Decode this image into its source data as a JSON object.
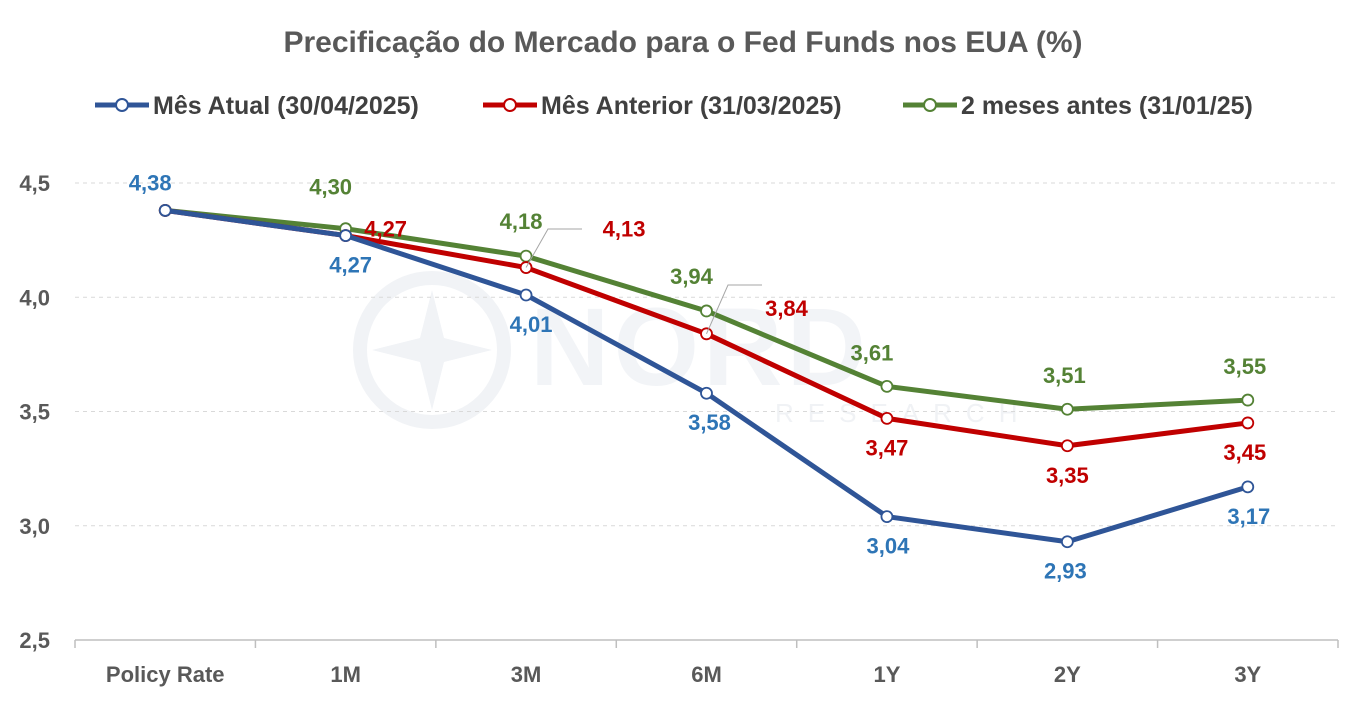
{
  "chart_data": {
    "type": "line",
    "title": "Precificação do Mercado para o Fed Funds nos EUA (%)",
    "categories": [
      "Policy Rate",
      "1M",
      "3M",
      "6M",
      "1Y",
      "2Y",
      "3Y"
    ],
    "y_ticks": [
      "4,5",
      "4,0",
      "3,5",
      "3,0",
      "2,5"
    ],
    "ylim": [
      2.5,
      4.5
    ],
    "grid": true,
    "legend_position": "top",
    "series": [
      {
        "name": "Mês Atual (30/04/2025)",
        "color": "#2f5597",
        "label_color": "#2e75b6",
        "values": [
          4.38,
          4.27,
          4.01,
          3.58,
          3.04,
          2.93,
          3.17
        ],
        "labels": [
          "4,38",
          "4,27",
          "4,01",
          "3,58",
          "3,04",
          "2,93",
          "3,17"
        ]
      },
      {
        "name": "Mês Anterior (31/03/2025)",
        "color": "#c00000",
        "label_color": "#c00000",
        "values": [
          4.38,
          4.27,
          4.13,
          3.84,
          3.47,
          3.35,
          3.45
        ],
        "labels": [
          "",
          "4,27",
          "4,13",
          "3,84",
          "3,47",
          "3,35",
          "3,45"
        ]
      },
      {
        "name": "2 meses antes (31/01/25)",
        "color": "#548235",
        "label_color": "#548235",
        "values": [
          4.38,
          4.3,
          4.18,
          3.94,
          3.61,
          3.51,
          3.55
        ],
        "labels": [
          "",
          "4,30",
          "4,18",
          "3,94",
          "3,61",
          "3,51",
          "3,55"
        ]
      }
    ]
  },
  "watermark": {
    "brand": "NORD",
    "sub": "RESEARCH"
  }
}
